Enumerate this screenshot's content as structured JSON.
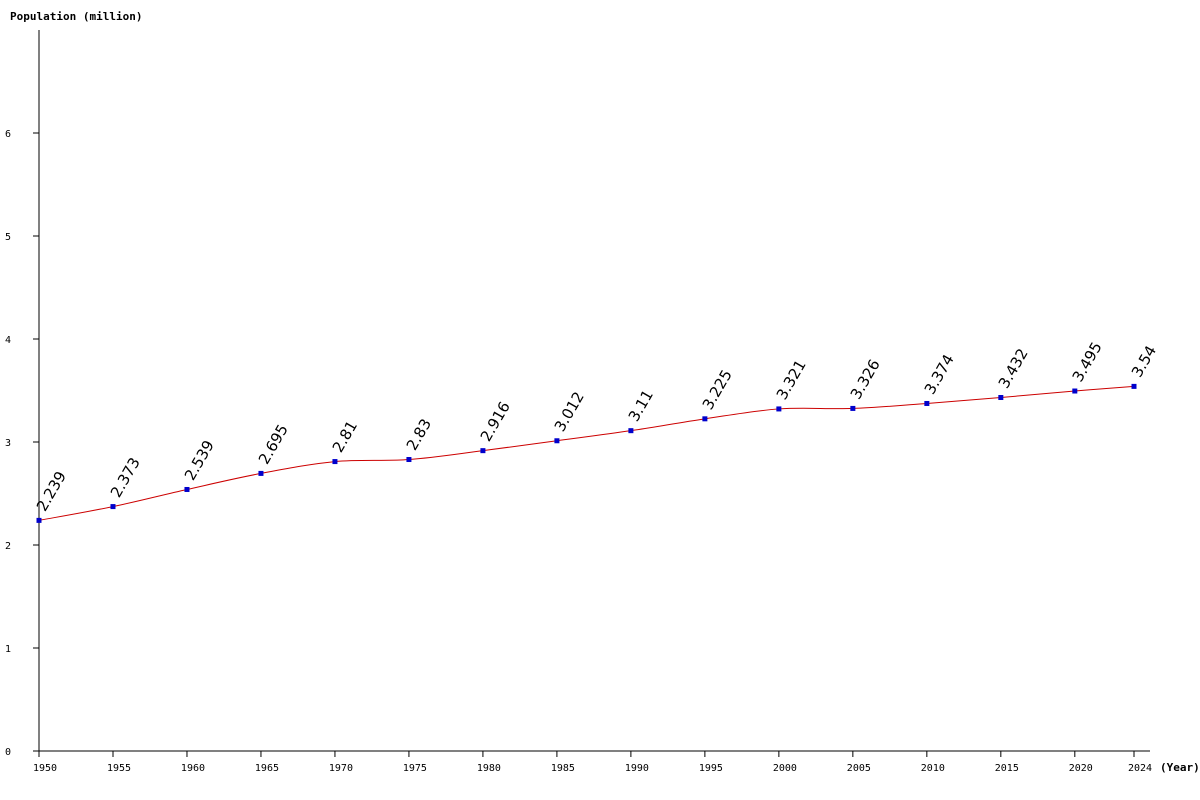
{
  "chart_data": {
    "type": "line",
    "ylabel": "Population (million)",
    "xlabel": "(Year)",
    "x": [
      1950,
      1955,
      1960,
      1965,
      1970,
      1975,
      1980,
      1985,
      1990,
      1995,
      2000,
      2005,
      2010,
      2015,
      2020,
      2024
    ],
    "x_tick_labels": [
      "1950",
      "1955",
      "1960",
      "1965",
      "1970",
      "1975",
      "1980",
      "1985",
      "1990",
      "1995",
      "2000",
      "2005",
      "2010",
      "2015",
      "2020",
      "2024"
    ],
    "series": [
      {
        "values": [
          2.239,
          2.373,
          2.539,
          2.695,
          2.81,
          2.83,
          2.916,
          3.012,
          3.11,
          3.225,
          3.321,
          3.326,
          3.374,
          3.432,
          3.495,
          3.54
        ],
        "data_labels": [
          "2.239",
          "2.373",
          "2.539",
          "2.695",
          "2.81",
          "2.83",
          "2.916",
          "3.012",
          "3.11",
          "3.225",
          "3.321",
          "3.326",
          "3.374",
          "3.432",
          "3.495",
          "3.54"
        ]
      }
    ],
    "y_ticks": [
      0,
      1,
      2,
      3,
      4,
      5,
      6
    ],
    "y_tick_labels": [
      "0",
      "1",
      "2",
      "3",
      "4",
      "5",
      "6"
    ],
    "ylim": [
      0,
      7
    ],
    "xlim": [
      1950,
      2024
    ],
    "grid": false,
    "legend": "none",
    "colors": {
      "line": "#cc0000",
      "marker": "#0000cc",
      "axis": "#000000"
    }
  }
}
